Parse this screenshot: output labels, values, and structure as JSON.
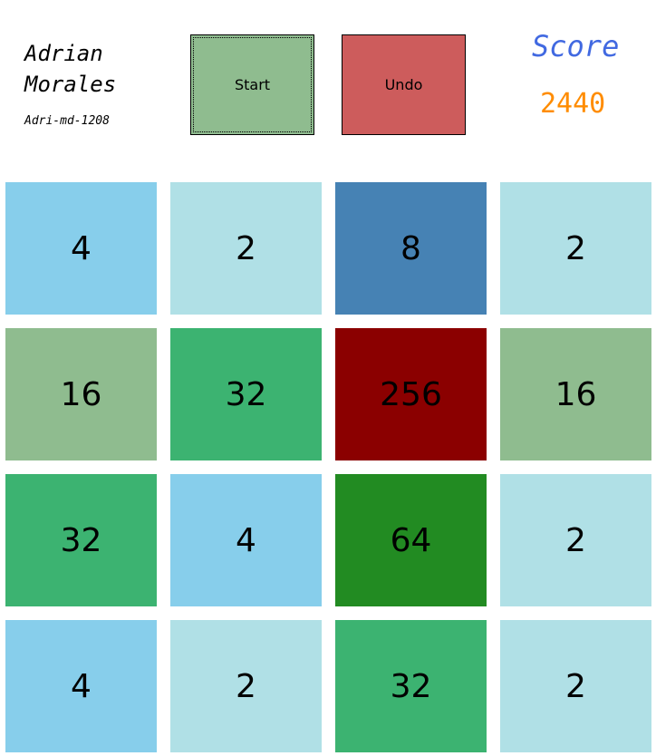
{
  "player": {
    "name": "Adrian Morales",
    "id": "Adri-md-1208"
  },
  "buttons": {
    "start_label": "Start",
    "undo_label": "Undo"
  },
  "score": {
    "label": "Score",
    "value": "2440"
  },
  "board": {
    "rows": [
      [
        {
          "value": "4",
          "color": "#87ceeb"
        },
        {
          "value": "2",
          "color": "#b0e0e6"
        },
        {
          "value": "8",
          "color": "#4682b4"
        },
        {
          "value": "2",
          "color": "#b0e0e6"
        }
      ],
      [
        {
          "value": "16",
          "color": "#8fbc8f"
        },
        {
          "value": "32",
          "color": "#3cb371"
        },
        {
          "value": "256",
          "color": "#8b0000"
        },
        {
          "value": "16",
          "color": "#8fbc8f"
        }
      ],
      [
        {
          "value": "32",
          "color": "#3cb371"
        },
        {
          "value": "4",
          "color": "#87ceeb"
        },
        {
          "value": "64",
          "color": "#228b22"
        },
        {
          "value": "2",
          "color": "#b0e0e6"
        }
      ],
      [
        {
          "value": "4",
          "color": "#87ceeb"
        },
        {
          "value": "2",
          "color": "#b0e0e6"
        },
        {
          "value": "32",
          "color": "#3cb371"
        },
        {
          "value": "2",
          "color": "#b0e0e6"
        }
      ]
    ]
  }
}
